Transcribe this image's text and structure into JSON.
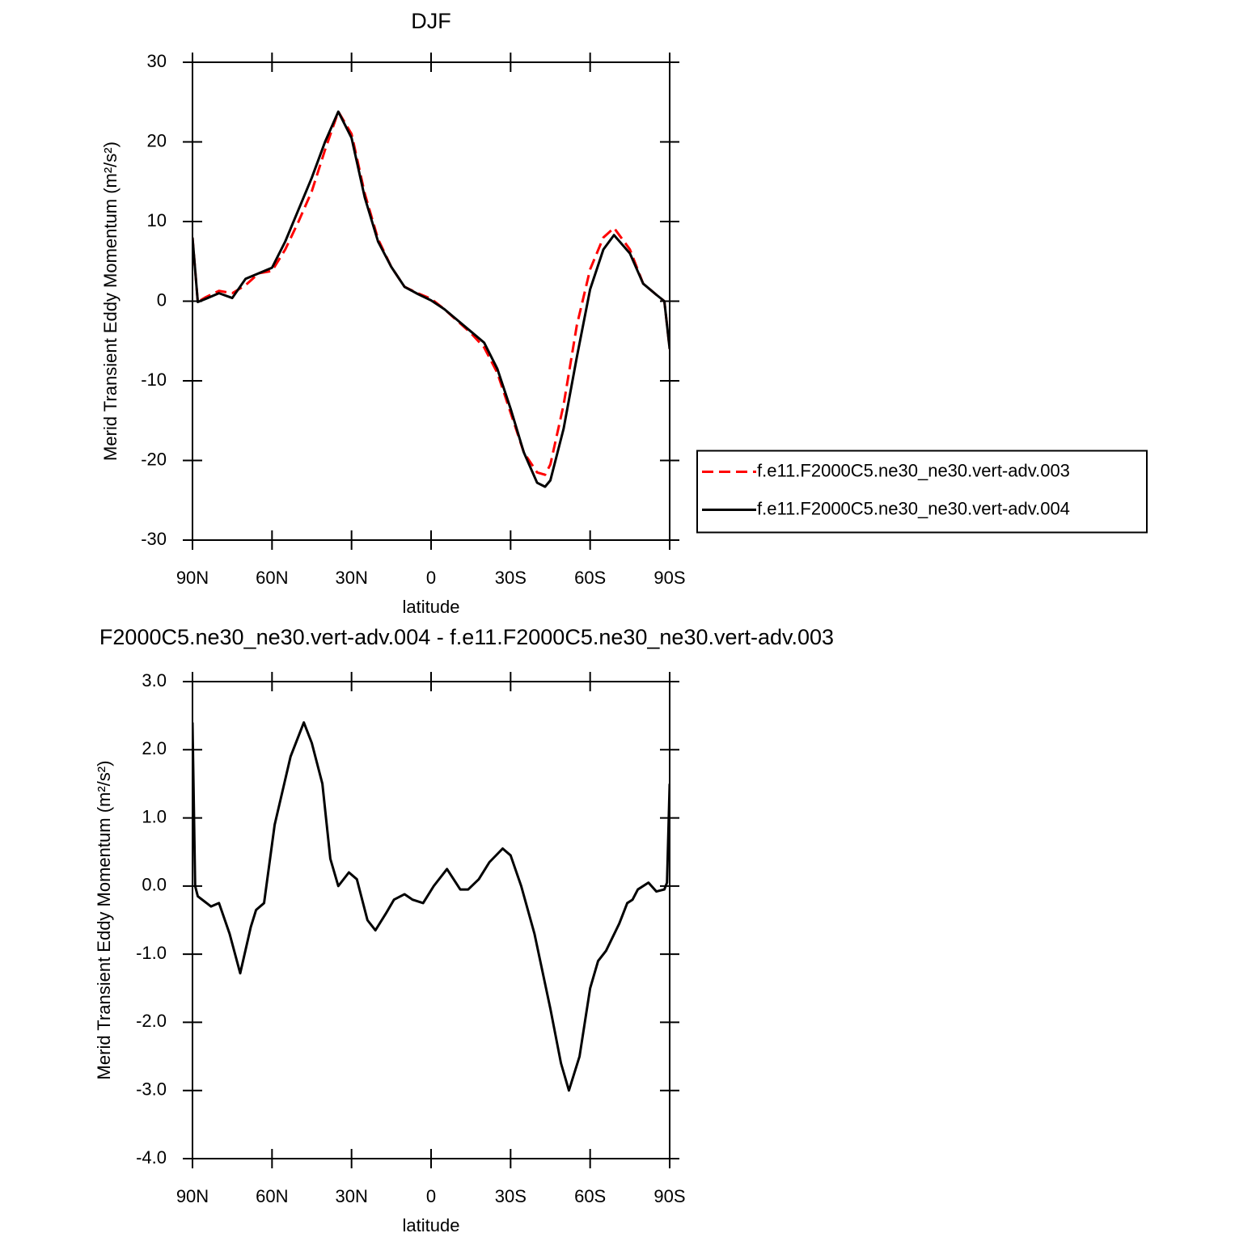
{
  "chart_data": [
    {
      "type": "line",
      "title": "DJF",
      "x_label": "latitude",
      "y_label": "Merid Transient Eddy Momentum (m²/s²)",
      "x": [
        90,
        88,
        85,
        80,
        75,
        70,
        65,
        60,
        55,
        50,
        45,
        40,
        35,
        30,
        25,
        20,
        15,
        10,
        5,
        0,
        -5,
        -10,
        -15,
        -20,
        -25,
        -30,
        -35,
        -40,
        -43,
        -45,
        -50,
        -55,
        -60,
        -65,
        -69,
        -75,
        -80,
        -85,
        -88,
        -90
      ],
      "series": [
        {
          "name": "f.e11.F2000C5.ne30_ne30.vert-adv.003",
          "color": "#ff0000",
          "linestyle": "dashed",
          "values": [
            8,
            -0.1,
            0.5,
            1.3,
            1.0,
            2.0,
            3.5,
            3.8,
            6.5,
            10,
            13.8,
            19,
            23.8,
            21,
            13.5,
            7.8,
            4.3,
            1.8,
            1.0,
            0.3,
            -1,
            -2.5,
            -4,
            -5.8,
            -9,
            -14,
            -19,
            -21.5,
            -21.8,
            -20.5,
            -13,
            -3,
            4,
            8,
            9.2,
            6.5,
            2.2,
            0.8,
            0,
            -6
          ]
        },
        {
          "name": "f.e11.F2000C5.ne30_ne30.vert-adv.004",
          "color": "#000000",
          "linestyle": "solid",
          "values": [
            8,
            -0.1,
            0.3,
            1.0,
            0.4,
            2.8,
            3.5,
            4.2,
            7.5,
            11.5,
            15.5,
            20,
            23.8,
            20.5,
            13,
            7.5,
            4.3,
            1.8,
            0.9,
            0.1,
            -1,
            -2.4,
            -3.8,
            -5.2,
            -8.5,
            -13.5,
            -19,
            -22.8,
            -23.3,
            -22.5,
            -16,
            -7,
            1.5,
            6.5,
            8.3,
            6,
            2.2,
            0.8,
            0,
            -6
          ]
        }
      ],
      "xlim": [
        90,
        -90
      ],
      "xticks": [
        {
          "value": 90,
          "label": "90N"
        },
        {
          "value": 60,
          "label": "60N"
        },
        {
          "value": 30,
          "label": "30N"
        },
        0,
        {
          "value": -30,
          "label": "30S"
        },
        {
          "value": -60,
          "label": "60S"
        },
        {
          "value": -90,
          "label": "90S"
        }
      ],
      "ylim": [
        -30,
        30
      ],
      "yticks": [
        -30,
        -20,
        -10,
        0,
        10,
        20,
        30
      ],
      "legend": "right"
    },
    {
      "type": "line",
      "title": "F2000C5.ne30_ne30.vert-adv.004 - f.e11.F2000C5.ne30_ne30.vert-adv.003",
      "x_label": "latitude",
      "y_label": "Merid Transient Eddy Momentum (m²/s²)",
      "x": [
        90,
        89,
        88,
        83,
        80,
        76,
        72,
        68,
        66,
        63,
        59,
        53,
        48,
        45,
        41,
        38,
        35,
        31,
        28,
        24,
        21,
        17,
        14,
        10,
        7,
        3,
        -1,
        -6,
        -11,
        -14,
        -18,
        -22,
        -27,
        -30,
        -34,
        -39,
        -45,
        -49,
        -52,
        -56,
        -60,
        -63,
        -66,
        -71,
        -74,
        -76,
        -78,
        -82,
        -85,
        -88,
        -89,
        -90
      ],
      "series": [
        {
          "color": "#000000",
          "linestyle": "solid",
          "values": [
            2.4,
            0,
            -0.15,
            -0.3,
            -0.25,
            -0.7,
            -1.28,
            -0.6,
            -0.35,
            -0.25,
            0.9,
            1.9,
            2.4,
            2.1,
            1.5,
            0.4,
            0.0,
            0.2,
            0.1,
            -0.5,
            -0.65,
            -0.4,
            -0.2,
            -0.12,
            -0.2,
            -0.25,
            0,
            0.25,
            -0.05,
            -0.05,
            0.1,
            0.35,
            0.55,
            0.45,
            0,
            -0.7,
            -1.8,
            -2.6,
            -3.0,
            -2.5,
            -1.5,
            -1.1,
            -0.95,
            -0.55,
            -0.25,
            -0.2,
            -0.05,
            0.05,
            -0.08,
            -0.05,
            0.05,
            1.5
          ]
        }
      ],
      "xlim": [
        90,
        -90
      ],
      "xticks": [
        {
          "value": 90,
          "label": "90N"
        },
        {
          "value": 60,
          "label": "60N"
        },
        {
          "value": 30,
          "label": "30N"
        },
        0,
        {
          "value": -30,
          "label": "30S"
        },
        {
          "value": -60,
          "label": "60S"
        },
        {
          "value": -90,
          "label": "90S"
        }
      ],
      "ylim": [
        -4,
        3
      ],
      "yticks": [
        {
          "value": -4,
          "label": "-4.0"
        },
        {
          "value": -3,
          "label": "-3.0"
        },
        {
          "value": -2,
          "label": "-2.0"
        },
        {
          "value": -1,
          "label": "-1.0"
        },
        {
          "value": 0,
          "label": "0.0"
        },
        {
          "value": 1,
          "label": "1.0"
        },
        {
          "value": 2,
          "label": "2.0"
        },
        {
          "value": 3,
          "label": "3.0"
        }
      ]
    }
  ]
}
